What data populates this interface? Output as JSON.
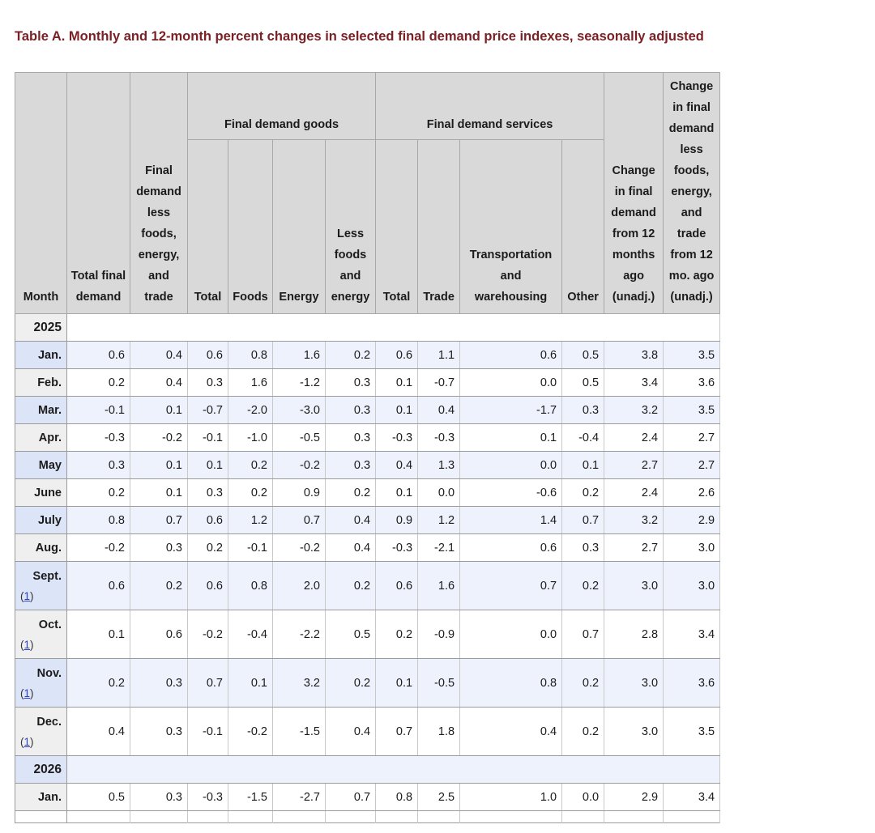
{
  "title": "Table A. Monthly and 12-month percent changes in selected final demand price indexes, seasonally adjusted",
  "colors": {
    "title_maroon": "#7b2125",
    "header_bg": "#d9d9d9",
    "row_blue": "#eef2fc",
    "label_blue": "#dce4f7",
    "label_gray": "#efefef",
    "footnote_link_blue": "#2a3dcf"
  },
  "table": {
    "header": {
      "month": "Month",
      "total_final_demand": "Total final demand",
      "fd_less_fet": "Final demand less foods, energy, and trade",
      "goods_group": "Final demand goods",
      "goods_cols": [
        "Total",
        "Foods",
        "Energy",
        "Less foods and energy"
      ],
      "services_group": "Final demand services",
      "services_cols": [
        "Total",
        "Trade",
        "Transportation and warehousing",
        "Other"
      ],
      "change_12mo": "Change in final demand from 12 months ago (unadj.)",
      "change_12mo_less": "Change in final demand less foods, energy, and trade from 12 mo. ago (unadj.)"
    },
    "rows": [
      {
        "type": "year",
        "label": "2025"
      },
      {
        "type": "month",
        "label": "Jan.",
        "values": [
          "0.6",
          "0.4",
          "0.6",
          "0.8",
          "1.6",
          "0.2",
          "0.6",
          "1.1",
          "0.6",
          "0.5",
          "3.8",
          "3.5"
        ]
      },
      {
        "type": "month",
        "label": "Feb.",
        "values": [
          "0.2",
          "0.4",
          "0.3",
          "1.6",
          "-1.2",
          "0.3",
          "0.1",
          "-0.7",
          "0.0",
          "0.5",
          "3.4",
          "3.6"
        ]
      },
      {
        "type": "month",
        "label": "Mar.",
        "values": [
          "-0.1",
          "0.1",
          "-0.7",
          "-2.0",
          "-3.0",
          "0.3",
          "0.1",
          "0.4",
          "-1.7",
          "0.3",
          "3.2",
          "3.5"
        ]
      },
      {
        "type": "month",
        "label": "Apr.",
        "values": [
          "-0.3",
          "-0.2",
          "-0.1",
          "-1.0",
          "-0.5",
          "0.3",
          "-0.3",
          "-0.3",
          "0.1",
          "-0.4",
          "2.4",
          "2.7"
        ]
      },
      {
        "type": "month",
        "label": "May",
        "values": [
          "0.3",
          "0.1",
          "0.1",
          "0.2",
          "-0.2",
          "0.3",
          "0.4",
          "1.3",
          "0.0",
          "0.1",
          "2.7",
          "2.7"
        ]
      },
      {
        "type": "month",
        "label": "June",
        "values": [
          "0.2",
          "0.1",
          "0.3",
          "0.2",
          "0.9",
          "0.2",
          "0.1",
          "0.0",
          "-0.6",
          "0.2",
          "2.4",
          "2.6"
        ]
      },
      {
        "type": "month",
        "label": "July",
        "values": [
          "0.8",
          "0.7",
          "0.6",
          "1.2",
          "0.7",
          "0.4",
          "0.9",
          "1.2",
          "1.4",
          "0.7",
          "3.2",
          "2.9"
        ]
      },
      {
        "type": "month",
        "label": "Aug.",
        "values": [
          "-0.2",
          "0.3",
          "0.2",
          "-0.1",
          "-0.2",
          "0.4",
          "-0.3",
          "-2.1",
          "0.6",
          "0.3",
          "2.7",
          "3.0"
        ]
      },
      {
        "type": "month",
        "label": "Sept.",
        "footnote": "1",
        "values": [
          "0.6",
          "0.2",
          "0.6",
          "0.8",
          "2.0",
          "0.2",
          "0.6",
          "1.6",
          "0.7",
          "0.2",
          "3.0",
          "3.0"
        ]
      },
      {
        "type": "month",
        "label": "Oct.",
        "footnote": "1",
        "values": [
          "0.1",
          "0.6",
          "-0.2",
          "-0.4",
          "-2.2",
          "0.5",
          "0.2",
          "-0.9",
          "0.0",
          "0.7",
          "2.8",
          "3.4"
        ]
      },
      {
        "type": "month",
        "label": "Nov.",
        "footnote": "1",
        "values": [
          "0.2",
          "0.3",
          "0.7",
          "0.1",
          "3.2",
          "0.2",
          "0.1",
          "-0.5",
          "0.8",
          "0.2",
          "3.0",
          "3.6"
        ]
      },
      {
        "type": "month",
        "label": "Dec.",
        "footnote": "1",
        "values": [
          "0.4",
          "0.3",
          "-0.1",
          "-0.2",
          "-1.5",
          "0.4",
          "0.7",
          "1.8",
          "0.4",
          "0.2",
          "3.0",
          "3.5"
        ]
      },
      {
        "type": "year",
        "label": "2026"
      },
      {
        "type": "month",
        "label": "Jan.",
        "values": [
          "0.5",
          "0.3",
          "-0.3",
          "-1.5",
          "-2.7",
          "0.7",
          "0.8",
          "2.5",
          "1.0",
          "0.0",
          "2.9",
          "3.4"
        ]
      },
      {
        "type": "partial"
      }
    ]
  }
}
